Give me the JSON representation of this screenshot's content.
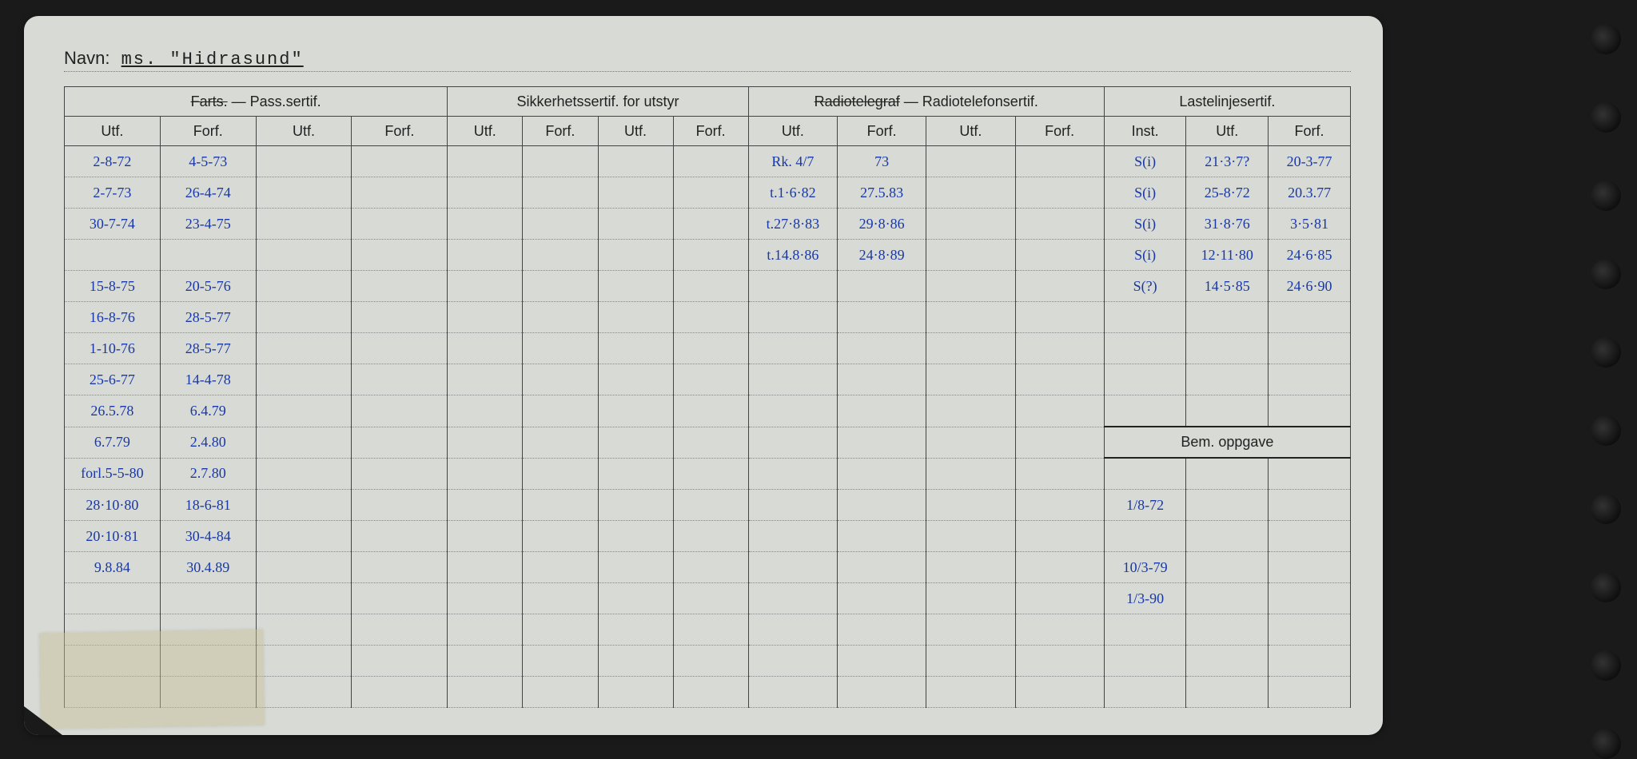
{
  "navn_label": "Navn:",
  "navn_value": "ms. \"Hidrasund\"",
  "sections": {
    "farts": {
      "title_strike": "Farts.",
      "title_rest": " — Pass.sertif.",
      "cols": [
        "Utf.",
        "Forf.",
        "Utf.",
        "Forf."
      ]
    },
    "sikkerhet": {
      "title": "Sikkerhetssertif. for utstyr",
      "cols": [
        "Utf.",
        "Forf.",
        "Utf.",
        "Forf."
      ]
    },
    "radio": {
      "title_strike": "Radiotelegraf",
      "title_rest": " — Radiotelefonsertif.",
      "cols": [
        "Utf.",
        "Forf.",
        "Utf.",
        "Forf."
      ]
    },
    "laste": {
      "title": "Lastelinjesertif.",
      "cols": [
        "Inst.",
        "Utf.",
        "Forf."
      ]
    }
  },
  "bem_label": "Bem. oppgave",
  "rows": [
    {
      "f_utf": "2-8-72",
      "f_forf": "4-5-73",
      "r_utf": "Rk. 4/7",
      "r_forf": "73",
      "l_inst": "S(i)",
      "l_utf": "21·3·7?",
      "l_forf": "20-3-77"
    },
    {
      "f_utf": "2-7-73",
      "f_forf": "26-4-74",
      "r_utf": "t.1·6·82",
      "r_forf": "27.5.83",
      "l_inst": "S(i)",
      "l_utf": "25-8·72",
      "l_forf": "20.3.77"
    },
    {
      "f_utf": "30-7-74",
      "f_forf": "23-4-75",
      "r_utf": "t.27·8·83",
      "r_forf": "29·8·86",
      "l_inst": "S(i)",
      "l_utf": "31·8·76",
      "l_forf": "3·5·81"
    },
    {
      "f_utf": "",
      "f_forf": "",
      "r_utf": "t.14.8·86",
      "r_forf": "24·8·89",
      "l_inst": "S(i)",
      "l_utf": "12·11·80",
      "l_forf": "24·6·85"
    },
    {
      "f_utf": "15-8-75",
      "f_forf": "20-5-76",
      "r_utf": "",
      "r_forf": "",
      "l_inst": "S(?)",
      "l_utf": "14·5·85",
      "l_forf": "24·6·90"
    },
    {
      "f_utf": "16-8-76",
      "f_forf": "28-5-77",
      "r_utf": "",
      "r_forf": "",
      "l_inst": "",
      "l_utf": "",
      "l_forf": ""
    },
    {
      "f_utf": "1-10-76",
      "f_forf": "28-5-77",
      "r_utf": "",
      "r_forf": "",
      "l_inst": "",
      "l_utf": "",
      "l_forf": ""
    },
    {
      "f_utf": "25-6-77",
      "f_forf": "14-4-78",
      "r_utf": "",
      "r_forf": "",
      "l_inst": "",
      "l_utf": "",
      "l_forf": ""
    },
    {
      "f_utf": "26.5.78",
      "f_forf": "6.4.79",
      "r_utf": "",
      "r_forf": "",
      "l_inst": "",
      "l_utf": "",
      "l_forf": ""
    },
    {
      "f_utf": "6.7.79",
      "f_forf": "2.4.80",
      "r_utf": "",
      "r_forf": "",
      "l_inst": "",
      "l_utf": "",
      "l_forf": "",
      "bem_header": true
    },
    {
      "f_utf": "forl.5-5-80",
      "f_forf": "2.7.80",
      "r_utf": "",
      "r_forf": "",
      "bem": ""
    },
    {
      "f_utf": "28·10·80",
      "f_forf": "18-6-81",
      "r_utf": "",
      "r_forf": "",
      "bem": "1/8-72"
    },
    {
      "f_utf": "20·10·81",
      "f_forf": "30-4-84",
      "r_utf": "",
      "r_forf": "",
      "bem": ""
    },
    {
      "f_utf": "9.8.84",
      "f_forf": "30.4.89",
      "r_utf": "",
      "r_forf": "",
      "bem": "10/3-79"
    },
    {
      "f_utf": "",
      "f_forf": "",
      "r_utf": "",
      "r_forf": "",
      "bem": "1/3-90"
    },
    {
      "f_utf": "",
      "f_forf": "",
      "r_utf": "",
      "r_forf": "",
      "bem": ""
    },
    {
      "f_utf": "",
      "f_forf": "",
      "r_utf": "",
      "r_forf": "",
      "bem": ""
    },
    {
      "f_utf": "",
      "f_forf": "",
      "r_utf": "",
      "r_forf": "",
      "bem": ""
    }
  ],
  "colors": {
    "page_bg": "#d8dad5",
    "ink": "#1838a8",
    "print": "#222222",
    "dotted": "#888888",
    "outer_bg": "#1a1a1a"
  }
}
